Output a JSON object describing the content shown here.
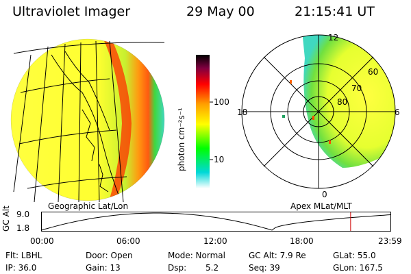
{
  "header": {
    "instrument": "Ultraviolet Imager",
    "date": "29 May 00",
    "time": "21:15:41 UT"
  },
  "colorbar": {
    "unit_label": "photon cm⁻²s⁻¹",
    "ticks": [
      {
        "label": "100",
        "value": 100
      },
      {
        "label": "10",
        "value": 10
      }
    ],
    "colors": [
      "#ffffff",
      "#00d8d8",
      "#00ff00",
      "#ffff00",
      "#ffa000",
      "#ff0000",
      "#800040",
      "#000000"
    ]
  },
  "left_panel": {
    "caption": "Geographic Lat/Lon"
  },
  "right_panel": {
    "caption": "Apex MLat/MLT",
    "mlt_labels": {
      "top": "12",
      "left": "18",
      "right": "6",
      "bottom": "0"
    },
    "mlat_labels": [
      "60",
      "70",
      "80"
    ]
  },
  "altitude_plot": {
    "ylabel": "GC Alt",
    "yticks": [
      "9.0",
      "1.8"
    ],
    "xticks": [
      "00:00",
      "06:00",
      "12:00",
      "18:00",
      "23:59"
    ],
    "current_time_fraction": 0.885,
    "current_marker_color": "#d00000"
  },
  "info": {
    "filter": "Flt: LBHL",
    "ip": "IP: 36.0",
    "door": "Door: Open",
    "gain": "Gain: 13",
    "mode": "Mode: Normal",
    "dsp_label": "Dsp:",
    "dsp_value": "5.2",
    "gc_alt": "GC Alt: 7.9 Re",
    "seq": "Seq: 39",
    "glat": "GLat: 55.0",
    "glon": "GLon: 167.5"
  }
}
